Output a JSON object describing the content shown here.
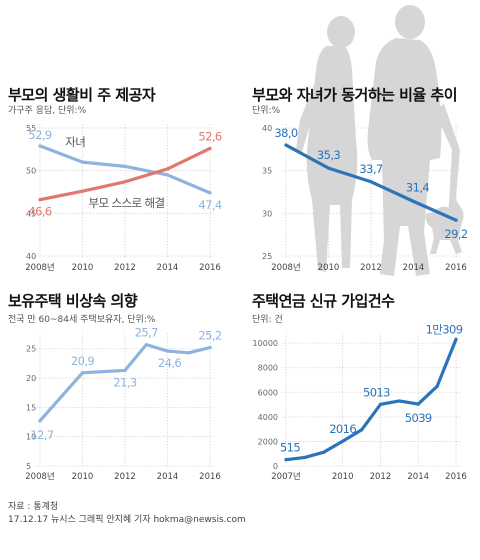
{
  "footer": {
    "source": "자료 : 통계청",
    "credit": "17.12.17 뉴시스 그래픽 안지혜 기자 hokma@newsis.com"
  },
  "colors": {
    "blue": "#2b74b8",
    "light_blue": "#8eb4de",
    "salmon": "#e2776c",
    "silhouette": "#c9c9c9",
    "grid": "#d6d6d6"
  },
  "chart_data": [
    {
      "type": "line",
      "title": "부모의 생활비 주 제공자",
      "subtitle": "가구주 응답, 단위:%",
      "x": [
        "2008년",
        "2010",
        "2012",
        "2014",
        "2016"
      ],
      "yticks": [
        40,
        45,
        50,
        55
      ],
      "ylim": [
        40,
        55
      ],
      "series": [
        {
          "name": "자녀",
          "values": [
            52.9,
            51.0,
            50.5,
            49.5,
            47.4
          ],
          "labels": [
            "52,9",
            "",
            "",
            "",
            "47,4"
          ],
          "color": "#8eb4de"
        },
        {
          "name": "부모 스스로 해결",
          "values": [
            46.6,
            47.6,
            48.7,
            50.2,
            52.6
          ],
          "labels": [
            "46,6",
            "",
            "",
            "",
            "52,6"
          ],
          "color": "#e2776c"
        }
      ]
    },
    {
      "type": "line",
      "title": "부모와 자녀가 동거하는 비율 추이",
      "subtitle": "단위:%",
      "x": [
        "2008년",
        "2010",
        "2012",
        "2014",
        "2016"
      ],
      "yticks": [
        25,
        30,
        35,
        40
      ],
      "ylim": [
        25,
        40
      ],
      "series": [
        {
          "values": [
            38.0,
            35.3,
            33.7,
            31.4,
            29.2
          ],
          "labels": [
            "38,0",
            "35,3",
            "33,7",
            "31,4",
            "29,2"
          ],
          "color": "#2b74b8"
        }
      ]
    },
    {
      "type": "line",
      "title": "보유주택 비상속 의향",
      "subtitle": "전국 만 60~84세 주택보유자, 단위:%",
      "x": [
        "2008년",
        "2010",
        "2012",
        "2014",
        "2016"
      ],
      "yticks": [
        5,
        10,
        15,
        20,
        25
      ],
      "ylim": [
        5,
        27
      ],
      "points": [
        [
          2008,
          12.7
        ],
        [
          2009,
          16.8
        ],
        [
          2010,
          20.9
        ],
        [
          2012,
          21.3
        ],
        [
          2013,
          25.7
        ],
        [
          2014,
          24.6
        ],
        [
          2015,
          24.3
        ],
        [
          2016,
          25.2
        ]
      ],
      "series": [
        {
          "color": "#8eb4de",
          "labels": [
            {
              "x": 2008,
              "y": 12.7,
              "text": "12,7"
            },
            {
              "x": 2010,
              "y": 20.9,
              "text": "20,9"
            },
            {
              "x": 2012,
              "y": 21.3,
              "text": "21,3"
            },
            {
              "x": 2013,
              "y": 25.7,
              "text": "25,7"
            },
            {
              "x": 2014,
              "y": 24.6,
              "text": "24,6"
            },
            {
              "x": 2016,
              "y": 25.2,
              "text": "25,2"
            }
          ]
        }
      ]
    },
    {
      "type": "line",
      "title": "주택연금 신규 가입건수",
      "subtitle": "단위: 건",
      "x": [
        "2007년",
        "2010",
        "2012",
        "2014",
        "2016"
      ],
      "yticks": [
        0,
        2000,
        4000,
        6000,
        8000,
        10000
      ],
      "ylim": [
        0,
        10500
      ],
      "points": [
        [
          2007,
          515
        ],
        [
          2008,
          695
        ],
        [
          2009,
          1124
        ],
        [
          2010,
          2016
        ],
        [
          2011,
          2936
        ],
        [
          2012,
          5013
        ],
        [
          2013,
          5296
        ],
        [
          2014,
          5039
        ],
        [
          2015,
          6486
        ],
        [
          2016,
          10309
        ]
      ],
      "series": [
        {
          "color": "#2b74b8",
          "labels": [
            {
              "x": 2007,
              "y": 515,
              "text": "515"
            },
            {
              "x": 2010,
              "y": 2016,
              "text": "2016"
            },
            {
              "x": 2012,
              "y": 5013,
              "text": "5013"
            },
            {
              "x": 2014,
              "y": 5039,
              "text": "5039"
            },
            {
              "x": 2016,
              "y": 10309,
              "text": "1만309"
            }
          ]
        }
      ]
    }
  ]
}
